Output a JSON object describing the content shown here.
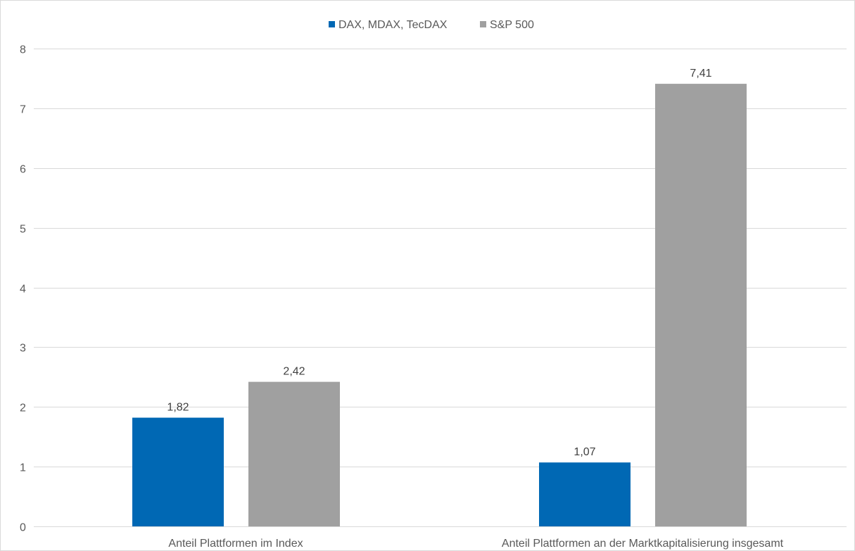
{
  "chart_data": {
    "type": "bar",
    "categories": [
      "Anteil Plattformen im Index",
      "Anteil Plattformen an der Marktkapitalisierung insgesamt"
    ],
    "series": [
      {
        "name": "DAX, MDAX, TecDAX",
        "values": [
          1.82,
          1.07
        ],
        "labels": [
          "1,82",
          "1,07"
        ],
        "color": "#0068b4"
      },
      {
        "name": "S&P 500",
        "values": [
          2.42,
          7.41
        ],
        "labels": [
          "2,42",
          "7,41"
        ],
        "color": "#a0a0a0"
      }
    ],
    "ylim": [
      0,
      8
    ],
    "yticks": [
      0,
      1,
      2,
      3,
      4,
      5,
      6,
      7,
      8
    ],
    "ytick_labels": [
      "0",
      "1",
      "2",
      "3",
      "4",
      "5",
      "6",
      "7",
      "8"
    ],
    "grid": true,
    "legend": "top",
    "grid_color": "#d9d9d9"
  }
}
